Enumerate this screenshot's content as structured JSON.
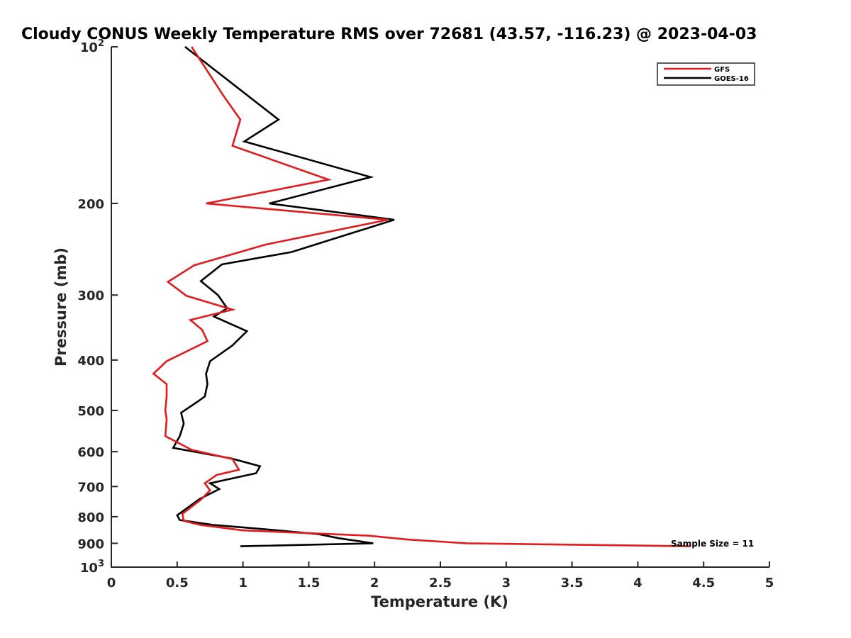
{
  "chart_data": {
    "type": "line",
    "title": "Cloudy CONUS Weekly Temperature RMS over 72681 (43.57, -116.23) @ 2023-04-03",
    "xlabel": "Temperature (K)",
    "ylabel": "Pressure (mb)",
    "xlim": [
      0,
      5
    ],
    "ylim": [
      100,
      1000
    ],
    "y_scale": "log",
    "y_reversed": true,
    "grid": false,
    "legend_position": "top-right",
    "x_ticks": [
      0,
      0.5,
      1,
      1.5,
      2,
      2.5,
      3,
      3.5,
      4,
      4.5,
      5
    ],
    "x_tick_labels": [
      "0",
      "0.5",
      "1",
      "1.5",
      "2",
      "2.5",
      "3",
      "3.5",
      "4",
      "4.5",
      "5"
    ],
    "y_ticks": [
      {
        "value": 100,
        "base": "10",
        "exp": "2"
      },
      {
        "value": 200,
        "text": "200"
      },
      {
        "value": 300,
        "text": "300"
      },
      {
        "value": 400,
        "text": "400"
      },
      {
        "value": 500,
        "text": "500"
      },
      {
        "value": 600,
        "text": "600"
      },
      {
        "value": 700,
        "text": "700"
      },
      {
        "value": 800,
        "text": "800"
      },
      {
        "value": 900,
        "text": "900"
      },
      {
        "value": 1000,
        "base": "10",
        "exp": "3"
      }
    ],
    "annotation": "Sample Size = 11",
    "series": [
      {
        "name": "GFS",
        "color": "#e41a1c",
        "x": [
          0.61,
          0.85,
          0.98,
          0.92,
          1.65,
          0.72,
          2.1,
          1.17,
          0.63,
          0.43,
          0.57,
          0.92,
          0.6,
          0.69,
          0.73,
          0.42,
          0.32,
          0.42,
          0.42,
          0.41,
          0.42,
          0.41,
          0.61,
          0.92,
          0.97,
          0.8,
          0.71,
          0.75,
          0.68,
          0.54,
          0.55,
          0.68,
          1.0,
          1.95,
          2.25,
          2.7,
          4.4
        ],
        "y": [
          100,
          124,
          138,
          155,
          180,
          200,
          215,
          240,
          263,
          283,
          301,
          320,
          335,
          350,
          368,
          402,
          425,
          445,
          470,
          500,
          520,
          560,
          595,
          620,
          650,
          665,
          690,
          712,
          742,
          790,
          815,
          830,
          850,
          870,
          885,
          900,
          912
        ]
      },
      {
        "name": "GOES-16",
        "color": "#000000",
        "x": [
          0.56,
          1.27,
          1.01,
          1.97,
          1.2,
          2.15,
          1.37,
          0.84,
          0.68,
          0.81,
          0.88,
          0.78,
          1.03,
          0.92,
          0.75,
          0.72,
          0.73,
          0.71,
          0.66,
          0.53,
          0.55,
          0.52,
          0.47,
          0.91,
          1.13,
          1.1,
          0.75,
          0.82,
          0.67,
          0.5,
          0.52,
          0.78,
          1.22,
          1.57,
          1.73,
          1.99,
          0.98
        ],
        "y": [
          100,
          138,
          152,
          178,
          200,
          215,
          248,
          262,
          282,
          300,
          318,
          330,
          352,
          375,
          402,
          425,
          445,
          470,
          480,
          505,
          530,
          560,
          590,
          618,
          640,
          660,
          690,
          708,
          740,
          795,
          812,
          830,
          848,
          864,
          880,
          900,
          912
        ]
      }
    ]
  }
}
